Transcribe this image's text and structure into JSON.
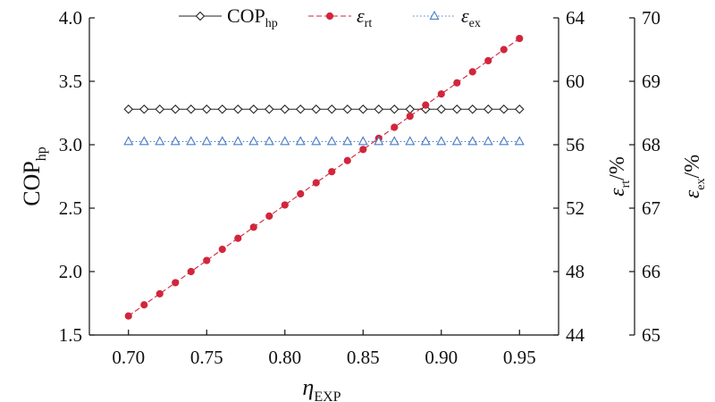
{
  "chart_data": {
    "type": "line",
    "x": [
      0.7,
      0.71,
      0.72,
      0.73,
      0.74,
      0.75,
      0.76,
      0.77,
      0.78,
      0.79,
      0.8,
      0.81,
      0.82,
      0.83,
      0.84,
      0.85,
      0.86,
      0.87,
      0.88,
      0.89,
      0.9,
      0.91,
      0.92,
      0.93,
      0.94,
      0.95
    ],
    "x_ticks": [
      "0.70",
      "0.75",
      "0.80",
      "0.85",
      "0.90",
      "0.95"
    ],
    "xlim": [
      0.675,
      0.975
    ],
    "xlabel": {
      "main": "η",
      "sub": "EXP"
    },
    "axes": [
      {
        "id": "cop",
        "side": "left",
        "ylim": [
          1.5,
          4.0
        ],
        "ticks": [
          "1.5",
          "2.0",
          "2.5",
          "3.0",
          "3.5",
          "4.0"
        ],
        "label": {
          "main": "COP",
          "sub": "hp",
          "suffix": ""
        }
      },
      {
        "id": "rt",
        "side": "right",
        "ylim": [
          44,
          64
        ],
        "ticks": [
          "44",
          "48",
          "52",
          "56",
          "60",
          "64"
        ],
        "label": {
          "main": "ε",
          "sub": "rt",
          "suffix": "/%"
        }
      },
      {
        "id": "ex",
        "side": "right-outer",
        "ylim": [
          65,
          70
        ],
        "ticks": [
          "65",
          "66",
          "67",
          "68",
          "69",
          "70"
        ],
        "label": {
          "main": "ε",
          "sub": "ex",
          "suffix": "/%"
        }
      }
    ],
    "series": [
      {
        "id": "cop",
        "axis": "cop",
        "name": "COP",
        "name_sub": "hp",
        "color": "#222222",
        "marker": "diamond-open",
        "line": "solid",
        "values": [
          3.28,
          3.28,
          3.28,
          3.28,
          3.28,
          3.28,
          3.28,
          3.28,
          3.28,
          3.28,
          3.28,
          3.28,
          3.28,
          3.28,
          3.28,
          3.28,
          3.28,
          3.28,
          3.28,
          3.28,
          3.28,
          3.28,
          3.28,
          3.28,
          3.28,
          3.28
        ]
      },
      {
        "id": "rt",
        "axis": "rt",
        "name": "ε",
        "name_sub": "rt",
        "color": "#d1263c",
        "marker": "circle-filled",
        "line": "dashed",
        "values": [
          45.2,
          45.9,
          46.6,
          47.3,
          48.0,
          48.7,
          49.4,
          50.1,
          50.8,
          51.5,
          52.2,
          52.9,
          53.6,
          54.3,
          55.0,
          55.7,
          56.4,
          57.1,
          57.8,
          58.5,
          59.2,
          59.9,
          60.6,
          61.3,
          62.0,
          62.7
        ]
      },
      {
        "id": "ex",
        "axis": "ex",
        "name": "ε",
        "name_sub": "ex",
        "color": "#4a7cc9",
        "marker": "triangle-open",
        "line": "dotted",
        "values": [
          68.05,
          68.05,
          68.05,
          68.05,
          68.05,
          68.05,
          68.05,
          68.05,
          68.05,
          68.05,
          68.05,
          68.05,
          68.05,
          68.05,
          68.05,
          68.05,
          68.05,
          68.05,
          68.05,
          68.05,
          68.05,
          68.05,
          68.05,
          68.05,
          68.05,
          68.05
        ]
      }
    ],
    "legend_position": "top-center",
    "grid": false
  }
}
